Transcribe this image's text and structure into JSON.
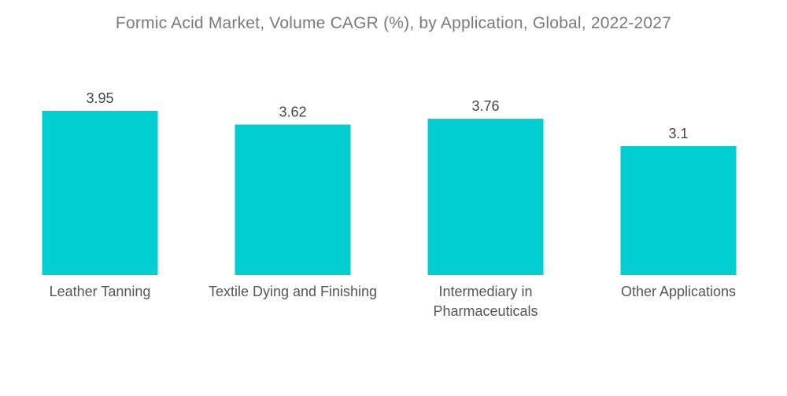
{
  "chart_data": {
    "type": "bar",
    "title": "Formic Acid Market, Volume CAGR (%), by Application, Global, 2022-2027",
    "categories": [
      [
        "Leather Tanning"
      ],
      [
        "Textile Dying and Finishing"
      ],
      [
        "Intermediary in",
        "Pharmaceuticals"
      ],
      [
        "Other Applications"
      ]
    ],
    "values": [
      3.95,
      3.62,
      3.76,
      3.1
    ],
    "value_labels": [
      "3.95",
      "3.62",
      "3.76",
      "3.1"
    ],
    "bar_color": "#00CED1",
    "grid": false,
    "legend": "none"
  }
}
